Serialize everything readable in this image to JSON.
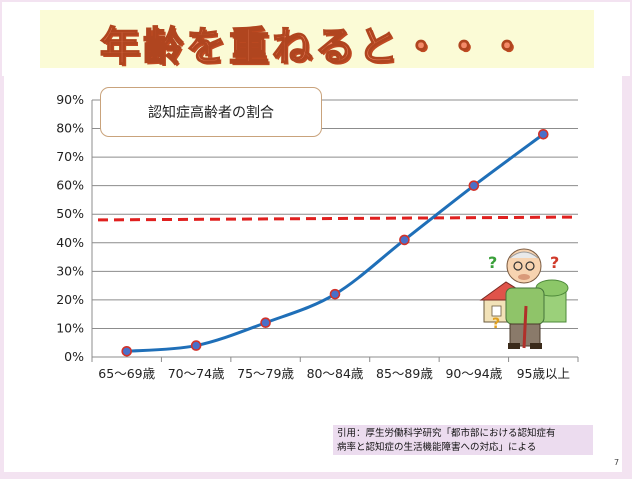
{
  "slide": {
    "title": "年齢を重ねると・・・",
    "page_number": "7",
    "citation_line1": "引用：厚生労働科学研究「都市部における認知症有",
    "citation_line2": "病率と認知症の生活機能障害への対応」による"
  },
  "illustration": {
    "icon": "elderly-man-with-cane-icon",
    "question_marks": [
      "?",
      "?",
      "?"
    ]
  },
  "chart_data": {
    "type": "line",
    "title": "認知症高齢者の割合",
    "categories": [
      "65～69歳",
      "70～74歳",
      "75～79歳",
      "80～84歳",
      "85～89歳",
      "90～94歳",
      "95歳以上"
    ],
    "series": [
      {
        "values": [
          2,
          4,
          12,
          22,
          41,
          60,
          78
        ],
        "color": "#1f6fb8"
      }
    ],
    "reference_line": {
      "start": 48,
      "end": 49,
      "color": "#e0201f",
      "style": "dashed"
    },
    "ylim": [
      0,
      90
    ],
    "yticks": [
      "0%",
      "10%",
      "20%",
      "30%",
      "40%",
      "50%",
      "60%",
      "70%",
      "80%",
      "90%"
    ],
    "grid": true,
    "xlabel": "",
    "ylabel": ""
  }
}
